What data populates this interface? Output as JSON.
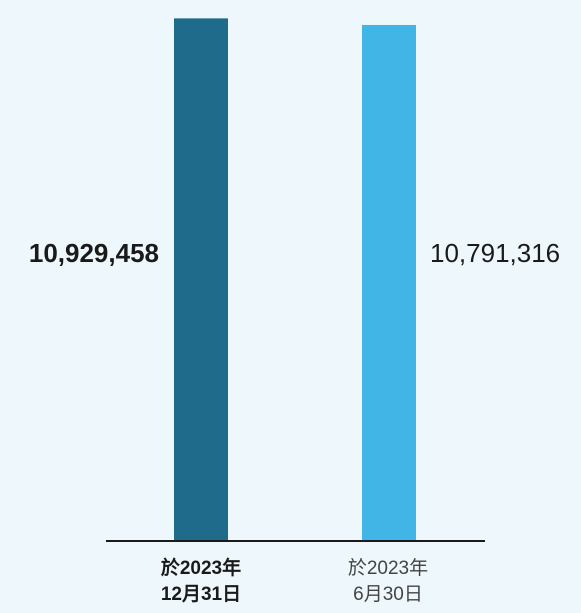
{
  "chart_data": {
    "type": "bar",
    "categories": [
      {
        "line1": "於2023年",
        "line2": "12月31日"
      },
      {
        "line1": "於2023年",
        "line2": "6月30日"
      }
    ],
    "values": [
      10929458,
      10791316
    ],
    "value_labels": [
      "10,929,458",
      "10,791,316"
    ],
    "bar_colors": [
      "#1f6b8c",
      "#41b6e6"
    ],
    "ylim": [
      0,
      11000000
    ],
    "title": "",
    "xlabel": "",
    "ylabel": "",
    "grid": false
  },
  "colors": {
    "background": "#eef7fb",
    "axis": "#1a1a1a"
  }
}
